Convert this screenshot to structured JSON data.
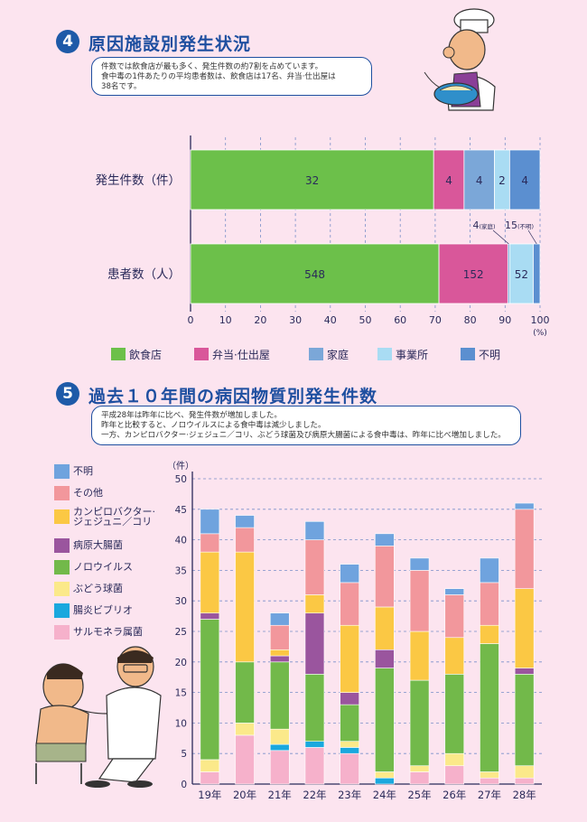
{
  "section4": {
    "number": "4",
    "title": "原因施設別発生状況",
    "notes": [
      "件数では飲食店が最も多く、発生件数の約7割を占めています。",
      "食中毒の1件あたりの平均患者数は、飲食店は17名、弁当·仕出屋は",
      "38名です。"
    ]
  },
  "section5": {
    "number": "5",
    "title": "過去１０年間の病因物質別発生件数",
    "notes": [
      "平成28年は昨年に比べ、発生件数が増加しました。",
      "昨年と比較すると、ノロウイルスによる食中毒は減少しました。",
      "一方、カンピロバクター·ジェジュニ／コリ、ぶどう球菌及び病原大腸菌による食中毒は、昨年に比べ増加しました。"
    ]
  },
  "colors": {
    "restaurant": "#6cc04a",
    "bento": "#d9579a",
    "home": "#7ba7d8",
    "office": "#a9dcf3",
    "unknown": "#5b8fd0",
    "s_unknown": "#6fa3de",
    "s_other": "#f2979c",
    "s_campylobacter": "#fbc844",
    "s_ecoli": "#9a559e",
    "s_norovirus": "#72b94a",
    "s_staph": "#fbe98a",
    "s_vibrio": "#1aa8de",
    "s_salmonella": "#f6b1cb"
  },
  "chart_data": [
    {
      "type": "bar",
      "orientation": "horizontal",
      "stacked": "percent",
      "categories": [
        "発生件数（件）",
        "患者数（人）"
      ],
      "series": [
        {
          "name": "飲食店",
          "values": [
            32,
            548
          ],
          "labels": [
            "32",
            "548"
          ]
        },
        {
          "name": "弁当·仕出屋",
          "values": [
            4,
            152
          ],
          "labels": [
            "4",
            "152"
          ]
        },
        {
          "name": "家庭",
          "values": [
            4,
            4
          ],
          "labels": [
            "4",
            ""
          ]
        },
        {
          "name": "事業所",
          "values": [
            2,
            52
          ],
          "labels": [
            "2",
            "52"
          ]
        },
        {
          "name": "不明",
          "values": [
            4,
            15
          ],
          "labels": [
            "4",
            ""
          ]
        }
      ],
      "callouts": [
        {
          "value": "4",
          "tag": "(家庭)"
        },
        {
          "value": "15",
          "tag": "(不明)"
        }
      ],
      "x_ticks": [
        "0",
        "10",
        "20",
        "30",
        "40",
        "50",
        "60",
        "70",
        "80",
        "90",
        "100"
      ],
      "x_unit": "(%)",
      "xlim": [
        0,
        100
      ]
    },
    {
      "type": "bar",
      "stacked": true,
      "categories": [
        "19年",
        "20年",
        "21年",
        "22年",
        "23年",
        "24年",
        "25年",
        "26年",
        "27年",
        "28年"
      ],
      "series": [
        {
          "name": "サルモネラ属菌",
          "values": [
            2,
            8,
            5.5,
            6,
            5,
            0,
            2,
            3,
            1,
            1
          ]
        },
        {
          "name": "腸炎ビブリオ",
          "values": [
            0,
            0,
            1,
            1,
            1,
            1,
            0,
            0,
            0,
            0
          ]
        },
        {
          "name": "ぶどう球菌",
          "values": [
            2,
            2,
            2.5,
            0,
            1,
            1,
            1,
            2,
            1,
            2
          ]
        },
        {
          "name": "ノロウイルス",
          "values": [
            23,
            10,
            11,
            11,
            6,
            17,
            14,
            13,
            21,
            15
          ]
        },
        {
          "name": "病原大腸菌",
          "values": [
            1,
            0,
            1,
            10,
            2,
            3,
            0,
            0,
            0,
            1
          ]
        },
        {
          "name": "カンピロバクター·ジェジュニ／コリ",
          "values": [
            10,
            18,
            1,
            3,
            11,
            7,
            8,
            6,
            3,
            13
          ]
        },
        {
          "name": "その他",
          "values": [
            3,
            4,
            4,
            9,
            7,
            10,
            10,
            7,
            7,
            13
          ]
        },
        {
          "name": "不明",
          "values": [
            4,
            2,
            2,
            3,
            3,
            2,
            2,
            1,
            4,
            1
          ]
        }
      ],
      "legend": [
        "不明",
        "その他",
        "カンピロバクター·",
        "ジェジュニ／コリ",
        "病原大腸菌",
        "ノロウイルス",
        "ぶどう球菌",
        "腸炎ビブリオ",
        "サルモネラ属菌"
      ],
      "ylabel": "（件）",
      "y_ticks": [
        "0",
        "5",
        "10",
        "15",
        "20",
        "25",
        "30",
        "35",
        "40",
        "45",
        "50"
      ],
      "ylim": [
        0,
        50
      ],
      "grid": true
    }
  ]
}
